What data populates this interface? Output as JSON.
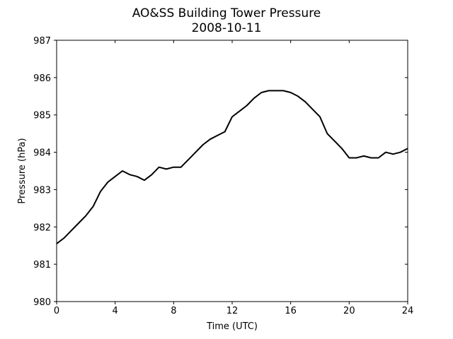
{
  "chart_data": {
    "type": "line",
    "title": "AO&SS Building Tower Pressure",
    "subtitle": "2008-10-11",
    "x_label": "Time (UTC)",
    "y_label": "Pressure (hPa)",
    "x": [
      0,
      0.5,
      1,
      1.5,
      2,
      2.5,
      3,
      3.5,
      4,
      4.5,
      5,
      5.5,
      6,
      6.5,
      7,
      7.5,
      8,
      8.5,
      9,
      9.5,
      10,
      10.5,
      11,
      11.5,
      12,
      12.5,
      13,
      13.5,
      14,
      14.5,
      15,
      15.5,
      16,
      16.5,
      17,
      17.5,
      18,
      18.5,
      19,
      19.5,
      20,
      20.5,
      21,
      21.5,
      22,
      22.5,
      23,
      23.5,
      24
    ],
    "series": [
      {
        "name": "Pressure",
        "color": "#000000",
        "values": [
          981.55,
          981.7,
          981.9,
          982.1,
          982.3,
          982.55,
          982.95,
          983.2,
          983.35,
          983.5,
          983.4,
          983.35,
          983.25,
          983.4,
          983.6,
          983.55,
          983.6,
          983.6,
          983.8,
          984.0,
          984.2,
          984.35,
          984.45,
          984.55,
          984.95,
          985.1,
          985.25,
          985.45,
          985.6,
          985.65,
          985.65,
          985.65,
          985.6,
          985.5,
          985.35,
          985.15,
          984.95,
          984.5,
          984.3,
          984.1,
          983.85,
          983.85,
          983.9,
          983.85,
          983.85,
          984.0,
          983.95,
          984.0,
          984.1
        ]
      }
    ],
    "xlim": [
      0,
      24
    ],
    "xticks": [
      0,
      4,
      8,
      12,
      16,
      20,
      24
    ],
    "ylim": [
      980,
      987
    ],
    "yticks": [
      980,
      981,
      982,
      983,
      984,
      985,
      986,
      987
    ]
  }
}
